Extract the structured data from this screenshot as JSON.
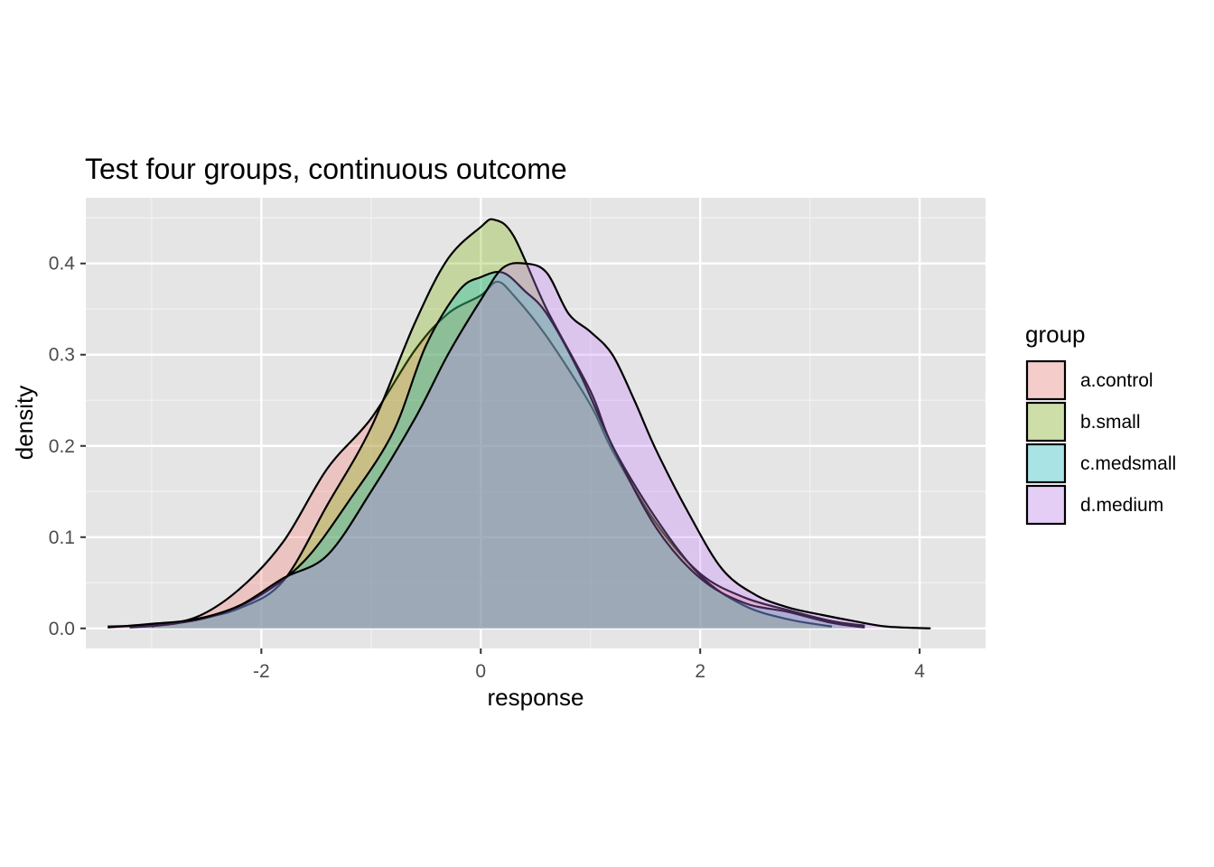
{
  "chart_data": {
    "type": "area",
    "subtype": "density",
    "title": "Test four groups, continuous outcome",
    "xlabel": "response",
    "ylabel": "density",
    "xlim": [
      -3.6,
      4.6
    ],
    "ylim": [
      -0.022,
      0.472
    ],
    "x_ticks": [
      -2,
      0,
      2,
      4
    ],
    "x_tick_labels": [
      "-2",
      "0",
      "2",
      "4"
    ],
    "y_ticks": [
      0.0,
      0.1,
      0.2,
      0.3,
      0.4
    ],
    "y_tick_labels": [
      "0.0",
      "0.1",
      "0.2",
      "0.3",
      "0.4"
    ],
    "grid": true,
    "background": "#e5e5e5",
    "legend": {
      "title": "group",
      "position": "right"
    },
    "fill_opacity": 0.3,
    "series": [
      {
        "name": "a.control",
        "color": "#F8766D",
        "points": [
          [
            -3.4,
            0.002
          ],
          [
            -3.0,
            0.004
          ],
          [
            -2.6,
            0.012
          ],
          [
            -2.2,
            0.043
          ],
          [
            -1.8,
            0.095
          ],
          [
            -1.4,
            0.175
          ],
          [
            -1.0,
            0.23
          ],
          [
            -0.6,
            0.305
          ],
          [
            -0.3,
            0.345
          ],
          [
            0.0,
            0.365
          ],
          [
            0.15,
            0.38
          ],
          [
            0.3,
            0.365
          ],
          [
            0.6,
            0.32
          ],
          [
            1.0,
            0.245
          ],
          [
            1.2,
            0.195
          ],
          [
            1.6,
            0.115
          ],
          [
            2.0,
            0.06
          ],
          [
            2.4,
            0.034
          ],
          [
            2.8,
            0.02
          ],
          [
            3.2,
            0.008
          ],
          [
            3.5,
            0.003
          ]
        ]
      },
      {
        "name": "b.small",
        "color": "#7CAE00",
        "points": [
          [
            -3.0,
            0.002
          ],
          [
            -2.6,
            0.01
          ],
          [
            -2.2,
            0.022
          ],
          [
            -1.8,
            0.052
          ],
          [
            -1.4,
            0.135
          ],
          [
            -1.0,
            0.22
          ],
          [
            -0.6,
            0.335
          ],
          [
            -0.3,
            0.405
          ],
          [
            0.0,
            0.44
          ],
          [
            0.12,
            0.448
          ],
          [
            0.3,
            0.43
          ],
          [
            0.6,
            0.35
          ],
          [
            1.0,
            0.26
          ],
          [
            1.2,
            0.2
          ],
          [
            1.6,
            0.12
          ],
          [
            2.0,
            0.058
          ],
          [
            2.4,
            0.025
          ],
          [
            2.8,
            0.01
          ],
          [
            3.2,
            0.002
          ]
        ]
      },
      {
        "name": "c.medsmall",
        "color": "#00BFC4",
        "points": [
          [
            -3.2,
            0.001
          ],
          [
            -2.8,
            0.005
          ],
          [
            -2.4,
            0.015
          ],
          [
            -2.0,
            0.037
          ],
          [
            -1.6,
            0.075
          ],
          [
            -1.2,
            0.14
          ],
          [
            -0.8,
            0.215
          ],
          [
            -0.5,
            0.31
          ],
          [
            -0.2,
            0.37
          ],
          [
            0.0,
            0.385
          ],
          [
            0.2,
            0.39
          ],
          [
            0.4,
            0.37
          ],
          [
            0.6,
            0.345
          ],
          [
            0.9,
            0.28
          ],
          [
            1.2,
            0.2
          ],
          [
            1.6,
            0.11
          ],
          [
            2.0,
            0.055
          ],
          [
            2.4,
            0.028
          ],
          [
            2.8,
            0.018
          ],
          [
            3.2,
            0.006
          ],
          [
            3.5,
            0.001
          ]
        ]
      },
      {
        "name": "d.medium",
        "color": "#C77CFF",
        "points": [
          [
            -3.4,
            0.001
          ],
          [
            -3.0,
            0.005
          ],
          [
            -2.6,
            0.01
          ],
          [
            -2.2,
            0.025
          ],
          [
            -1.8,
            0.055
          ],
          [
            -1.4,
            0.08
          ],
          [
            -1.0,
            0.15
          ],
          [
            -0.6,
            0.23
          ],
          [
            -0.3,
            0.3
          ],
          [
            0.0,
            0.36
          ],
          [
            0.2,
            0.395
          ],
          [
            0.4,
            0.4
          ],
          [
            0.6,
            0.39
          ],
          [
            0.8,
            0.345
          ],
          [
            1.0,
            0.325
          ],
          [
            1.2,
            0.3
          ],
          [
            1.4,
            0.25
          ],
          [
            1.6,
            0.195
          ],
          [
            1.9,
            0.125
          ],
          [
            2.2,
            0.065
          ],
          [
            2.5,
            0.037
          ],
          [
            2.8,
            0.023
          ],
          [
            3.1,
            0.015
          ],
          [
            3.4,
            0.008
          ],
          [
            3.7,
            0.002
          ],
          [
            4.1,
            0.0
          ]
        ]
      }
    ]
  }
}
